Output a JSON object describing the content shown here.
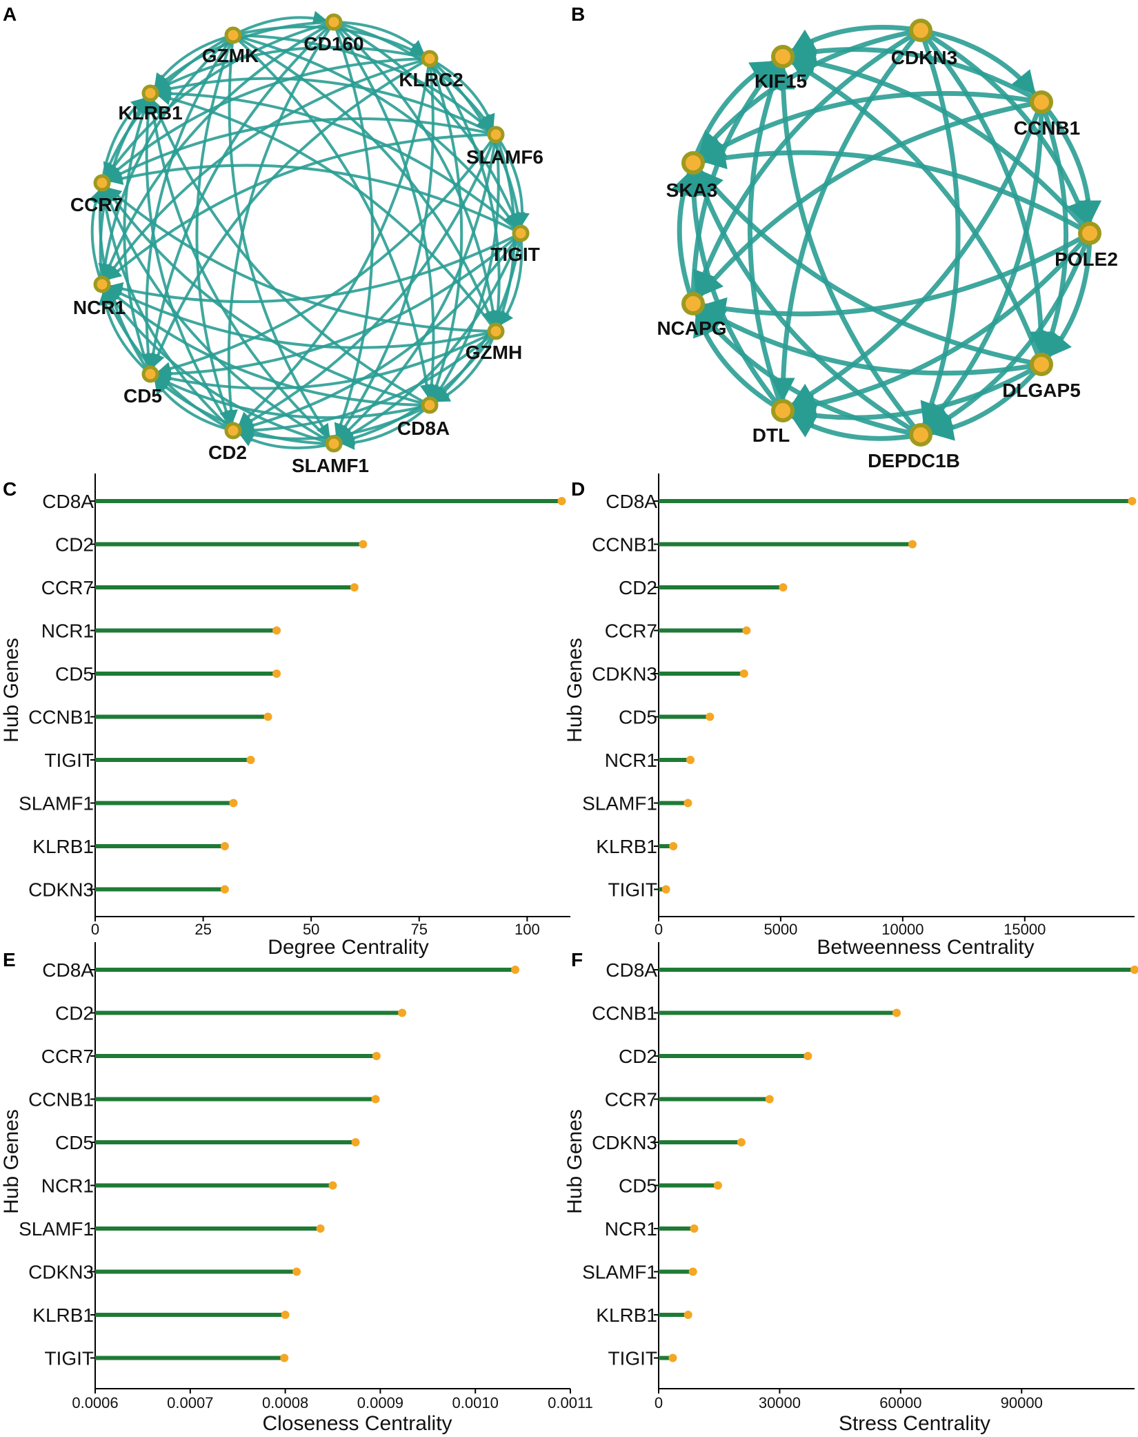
{
  "colors": {
    "edge": "#2a9d93",
    "node_fill": "#f5b335",
    "node_ring": "#9e9a1f",
    "bar": "#1f7a35",
    "dot": "#f5a623",
    "axis": "#000000"
  },
  "networks": [
    {
      "id": "A",
      "letter": "A",
      "nodes": [
        "GZMK",
        "CD160",
        "KLRC2",
        "SLAMF6",
        "TIGIT",
        "GZMH",
        "CD8A",
        "SLAMF1",
        "CD2",
        "CD5",
        "NCR1",
        "CCR7",
        "KLRB1"
      ]
    },
    {
      "id": "B",
      "letter": "B",
      "nodes": [
        "CDKN3",
        "CCNB1",
        "POLE2",
        "DLGAP5",
        "DEPDC1B",
        "DTL",
        "NCAPG",
        "SKA3",
        "KIF15"
      ]
    }
  ],
  "chart_data": [
    {
      "id": "C",
      "letter": "C",
      "type": "lollipop",
      "title": "",
      "xlabel": "Degree Centrality",
      "ylabel": "Hub Genes",
      "categories": [
        "CD8A",
        "CD2",
        "CCR7",
        "NCR1",
        "CD5",
        "CCNB1",
        "TIGIT",
        "SLAMF1",
        "KLRB1",
        "CDKN3"
      ],
      "values": [
        108,
        62,
        60,
        42,
        42,
        40,
        36,
        32,
        30,
        30
      ],
      "xlim": [
        0,
        110
      ],
      "ticks": [
        0,
        25,
        50,
        75,
        100
      ],
      "tick_labels": [
        "0",
        "25",
        "50",
        "75",
        "100"
      ]
    },
    {
      "id": "D",
      "letter": "D",
      "type": "lollipop",
      "title": "",
      "xlabel": "Betweenness Centrality",
      "ylabel": "Hub Genes",
      "categories": [
        "CD8A",
        "CCNB1",
        "CD2",
        "CCR7",
        "CDKN3",
        "CD5",
        "NCR1",
        "SLAMF1",
        "KLRB1",
        "TIGIT"
      ],
      "values": [
        19400,
        10400,
        5100,
        3600,
        3500,
        2100,
        1300,
        1200,
        600,
        300
      ],
      "xlim": [
        0,
        19500
      ],
      "ticks": [
        0,
        5000,
        10000,
        15000
      ],
      "tick_labels": [
        "0",
        "5000",
        "10000",
        "15000"
      ]
    },
    {
      "id": "E",
      "letter": "E",
      "type": "lollipop",
      "title": "",
      "xlabel": "Closeness Centrality",
      "ylabel": "Hub Genes",
      "categories": [
        "CD8A",
        "CD2",
        "CCR7",
        "CCNB1",
        "CD5",
        "NCR1",
        "SLAMF1",
        "CDKN3",
        "KLRB1",
        "TIGIT"
      ],
      "values": [
        0.001042,
        0.000923,
        0.000896,
        0.000895,
        0.000874,
        0.00085,
        0.000837,
        0.000812,
        0.0008,
        0.000799
      ],
      "xlim": [
        0.0006,
        0.0011
      ],
      "ticks": [
        0.0006,
        0.0007,
        0.0008,
        0.0009,
        0.001,
        0.0011
      ],
      "tick_labels": [
        "0.0006",
        "0.0007",
        "0.0008",
        "0.0009",
        "0.0010",
        "0.0011"
      ]
    },
    {
      "id": "F",
      "letter": "F",
      "type": "lollipop",
      "title": "",
      "xlabel": "Stress Centrality",
      "ylabel": "Hub Genes",
      "categories": [
        "CD8A",
        "CCNB1",
        "CD2",
        "CCR7",
        "CDKN3",
        "CD5",
        "NCR1",
        "SLAMF1",
        "KLRB1",
        "TIGIT"
      ],
      "values": [
        118000,
        59000,
        37000,
        27500,
        20500,
        14700,
        8800,
        8500,
        7300,
        3500
      ],
      "xlim": [
        0,
        118000
      ],
      "ticks": [
        0,
        30000,
        60000,
        90000
      ],
      "tick_labels": [
        "0",
        "30000",
        "60000",
        "90000"
      ]
    }
  ]
}
